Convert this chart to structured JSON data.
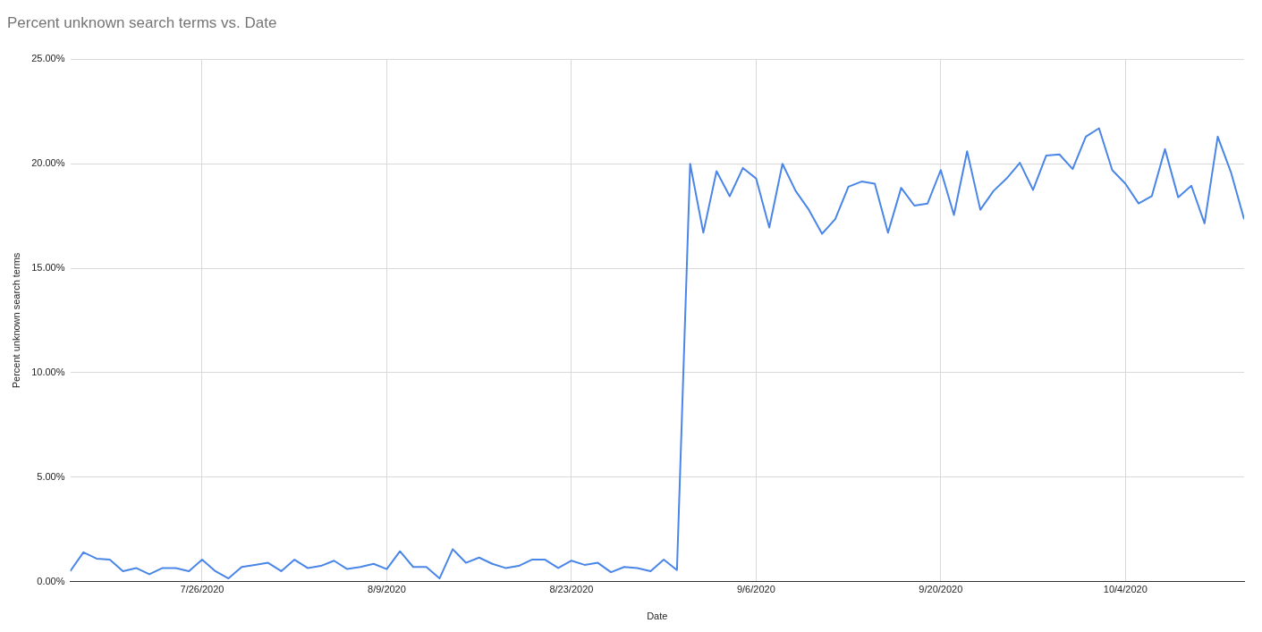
{
  "chart_data": {
    "type": "line",
    "title": "Percent unknown search terms vs. Date",
    "xlabel": "Date",
    "ylabel": "Percent unknown search terms",
    "x": [
      "2020-07-16",
      "2020-07-17",
      "2020-07-18",
      "2020-07-19",
      "2020-07-20",
      "2020-07-21",
      "2020-07-22",
      "2020-07-23",
      "2020-07-24",
      "2020-07-25",
      "2020-07-26",
      "2020-07-27",
      "2020-07-28",
      "2020-07-29",
      "2020-07-30",
      "2020-07-31",
      "2020-08-01",
      "2020-08-02",
      "2020-08-03",
      "2020-08-04",
      "2020-08-05",
      "2020-08-06",
      "2020-08-07",
      "2020-08-08",
      "2020-08-09",
      "2020-08-10",
      "2020-08-11",
      "2020-08-12",
      "2020-08-13",
      "2020-08-14",
      "2020-08-15",
      "2020-08-16",
      "2020-08-17",
      "2020-08-18",
      "2020-08-19",
      "2020-08-20",
      "2020-08-21",
      "2020-08-22",
      "2020-08-23",
      "2020-08-24",
      "2020-08-25",
      "2020-08-26",
      "2020-08-27",
      "2020-08-28",
      "2020-08-29",
      "2020-08-30",
      "2020-08-31",
      "2020-09-01",
      "2020-09-02",
      "2020-09-03",
      "2020-09-04",
      "2020-09-05",
      "2020-09-06",
      "2020-09-07",
      "2020-09-08",
      "2020-09-09",
      "2020-09-10",
      "2020-09-11",
      "2020-09-12",
      "2020-09-13",
      "2020-09-14",
      "2020-09-15",
      "2020-09-16",
      "2020-09-17",
      "2020-09-18",
      "2020-09-19",
      "2020-09-20",
      "2020-09-21",
      "2020-09-22",
      "2020-09-23",
      "2020-09-24",
      "2020-09-25",
      "2020-09-26",
      "2020-09-27",
      "2020-09-28",
      "2020-09-29",
      "2020-09-30",
      "2020-10-01",
      "2020-10-02",
      "2020-10-03",
      "2020-10-04",
      "2020-10-05",
      "2020-10-06",
      "2020-10-07",
      "2020-10-08",
      "2020-10-09",
      "2020-10-10",
      "2020-10-11",
      "2020-10-12",
      "2020-10-13"
    ],
    "series": [
      {
        "color": "#4a86e8",
        "values": [
          0.5,
          1.4,
          1.1,
          1.05,
          0.5,
          0.65,
          0.35,
          0.65,
          0.65,
          0.5,
          1.05,
          0.5,
          0.15,
          0.7,
          0.8,
          0.9,
          0.5,
          1.05,
          0.65,
          0.75,
          1.0,
          0.6,
          0.7,
          0.85,
          0.6,
          1.45,
          0.7,
          0.7,
          0.15,
          1.55,
          0.9,
          1.15,
          0.85,
          0.65,
          0.75,
          1.05,
          1.05,
          0.65,
          1.0,
          0.8,
          0.9,
          0.45,
          0.7,
          0.65,
          0.5,
          1.05,
          0.55,
          20.0,
          16.7,
          19.65,
          18.45,
          19.8,
          19.3,
          16.95,
          20.0,
          18.7,
          17.8,
          16.65,
          17.35,
          18.9,
          19.15,
          19.05,
          16.7,
          18.85,
          18.0,
          18.1,
          19.7,
          17.55,
          20.6,
          17.8,
          18.7,
          19.3,
          20.05,
          18.75,
          20.4,
          20.45,
          19.75,
          21.3,
          21.7,
          19.7,
          19.05,
          18.1,
          18.45,
          20.7,
          18.4,
          18.95,
          17.15,
          21.3,
          19.6,
          17.35
        ]
      }
    ],
    "xlim": [
      "2020-07-16",
      "2020-10-13"
    ],
    "xticks": [
      {
        "value": "2020-07-26",
        "label": "7/26/2020"
      },
      {
        "value": "2020-08-09",
        "label": "8/9/2020"
      },
      {
        "value": "2020-08-23",
        "label": "8/23/2020"
      },
      {
        "value": "2020-09-06",
        "label": "9/6/2020"
      },
      {
        "value": "2020-09-20",
        "label": "9/20/2020"
      },
      {
        "value": "2020-10-04",
        "label": "10/4/2020"
      }
    ],
    "ylim": [
      0,
      25
    ],
    "yticks": [
      {
        "value": 0,
        "label": "0.00%"
      },
      {
        "value": 5,
        "label": "5.00%"
      },
      {
        "value": 10,
        "label": "10.00%"
      },
      {
        "value": 15,
        "label": "15.00%"
      },
      {
        "value": 20,
        "label": "20.00%"
      },
      {
        "value": 25,
        "label": "25.00%"
      }
    ],
    "grid": true,
    "legend": false,
    "marker": "none",
    "line_style": "solid"
  }
}
